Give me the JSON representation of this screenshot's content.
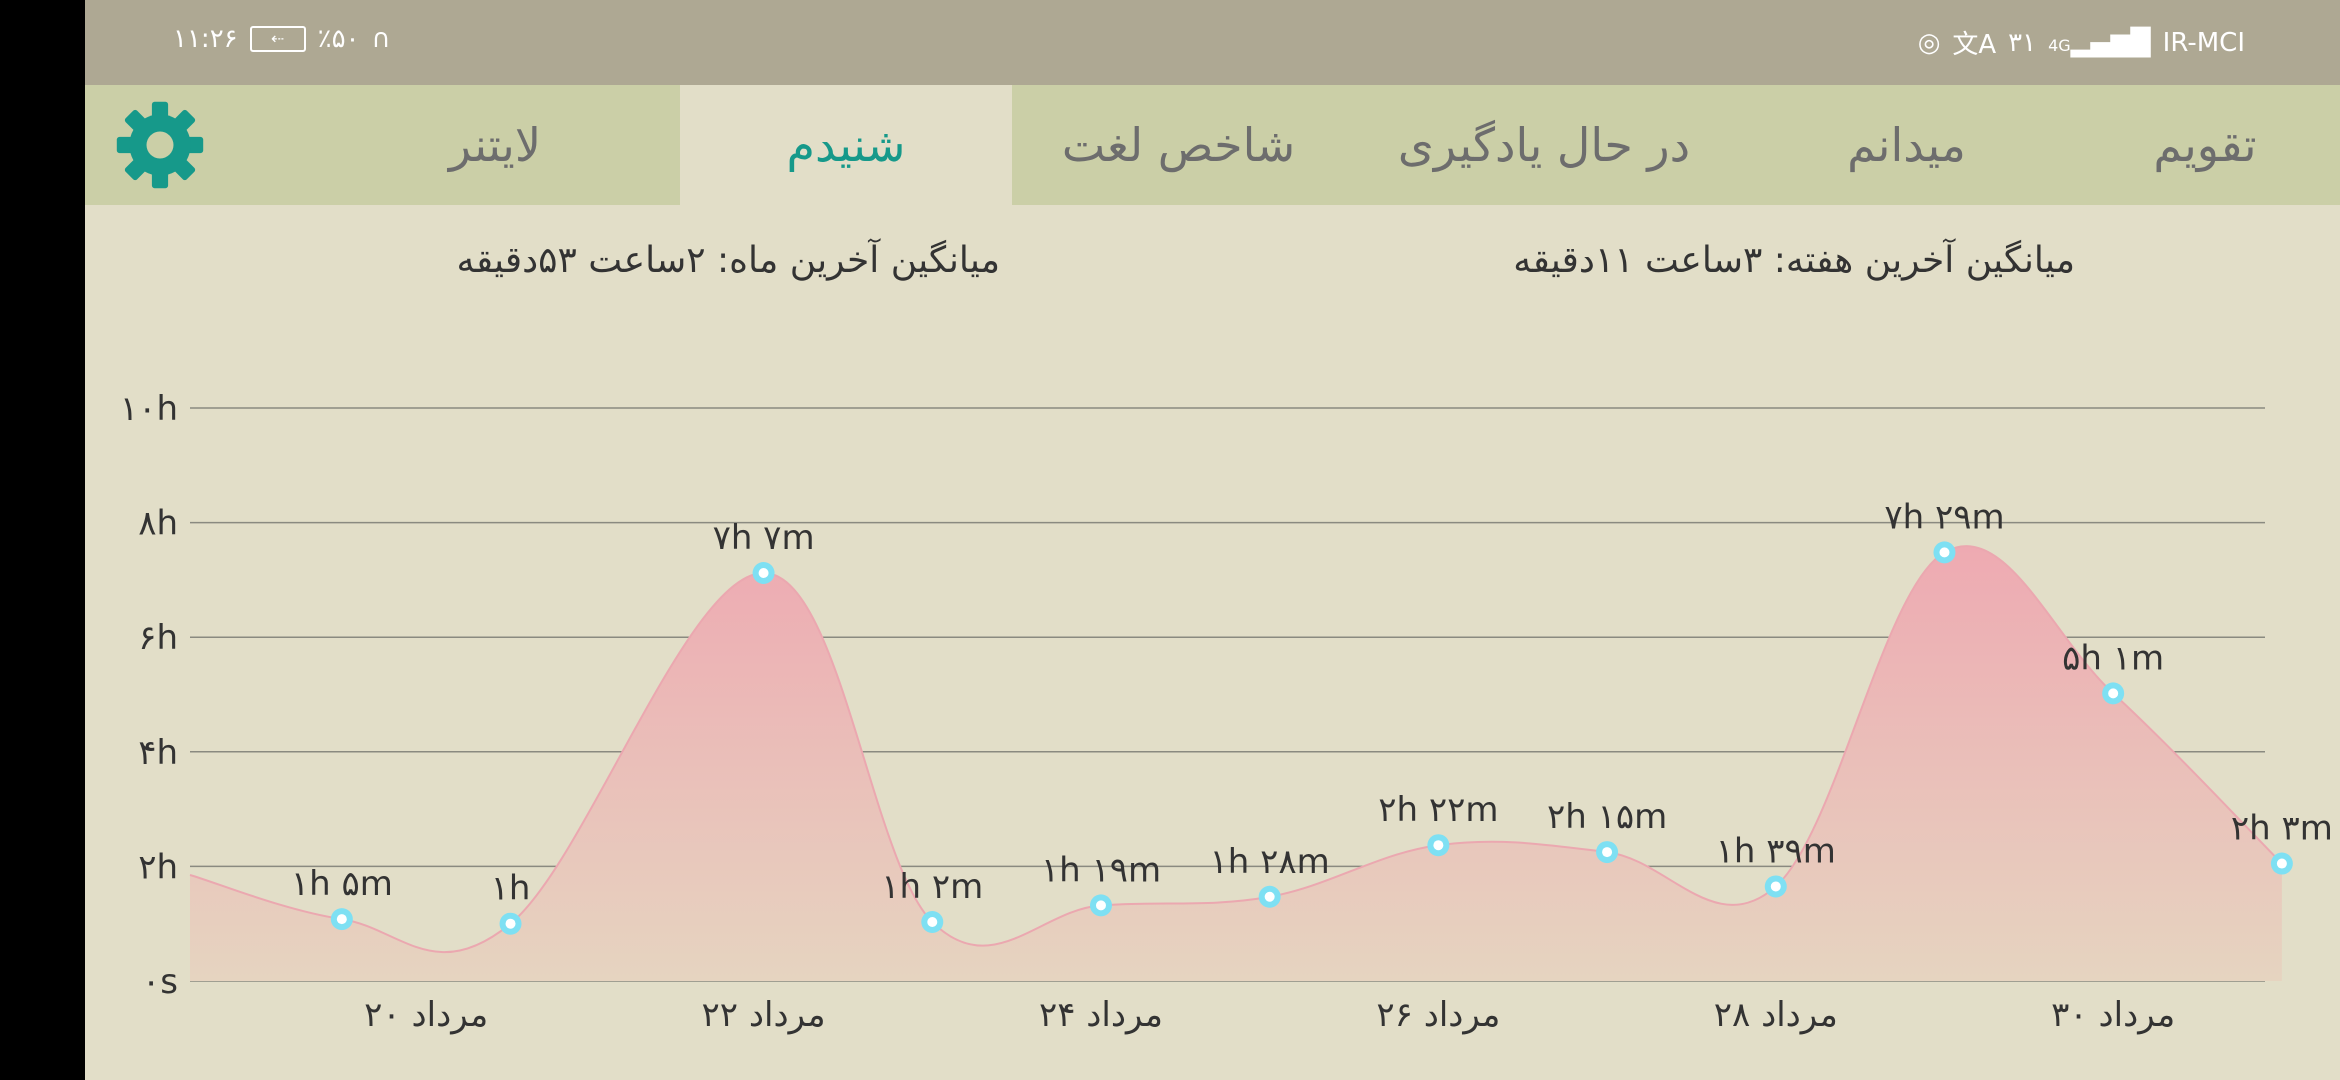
{
  "status_bar": {
    "time": "۱۱:۲۶",
    "battery": "٪۵۰",
    "carrier": "IR-MCI",
    "signal": "4G",
    "day": "۳۱",
    "icons": [
      "headphones-icon",
      "battery-icon",
      "instagram-icon",
      "translate-icon",
      "signal-icon"
    ]
  },
  "tabs": [
    {
      "label": "تقویم",
      "active": false
    },
    {
      "label": "میدانم",
      "active": false
    },
    {
      "label": "در حال یادگیری",
      "active": false
    },
    {
      "label": "شاخص لغت",
      "active": false
    },
    {
      "label": "شنیدم",
      "active": true
    },
    {
      "label": "لایتنر",
      "active": false
    }
  ],
  "settings_icon": "gear-icon",
  "summary": {
    "week": "میانگین آخرین هفته: ۳ساعت  ۱۱دقیقه",
    "month": "میانگین آخرین ماه: ۲ساعت  ۵۳دقیقه"
  },
  "colors": {
    "accent": "#16998a",
    "area_top": "#eeaab2",
    "area_bottom": "#e6d4c0",
    "line": "#eba8b0",
    "point": "#7ee0f3"
  },
  "chart_data": {
    "type": "area",
    "y_ticks": [
      "۰s",
      "۲h",
      "۴h",
      "۶h",
      "۸h",
      "۱۰h"
    ],
    "ylim": [
      0,
      10
    ],
    "x_ticks": [
      {
        "x": 20,
        "label": "۲۰ مرداد"
      },
      {
        "x": 22,
        "label": "۲۲ مرداد"
      },
      {
        "x": 24,
        "label": "۲۴ مرداد"
      },
      {
        "x": 26,
        "label": "۲۶ مرداد"
      },
      {
        "x": 28,
        "label": "۲۸ مرداد"
      },
      {
        "x": 30,
        "label": "۳۰ مرداد"
      }
    ],
    "xlim": [
      18.6,
      30.9
    ],
    "grid": true,
    "points": [
      {
        "x": 19.5,
        "y": 1.08,
        "label": "۱h ۵m"
      },
      {
        "x": 20.5,
        "y": 1.0,
        "label": "۱h"
      },
      {
        "x": 22.0,
        "y": 7.12,
        "label": "۷h ۷m"
      },
      {
        "x": 23.0,
        "y": 1.03,
        "label": "۱h ۲m"
      },
      {
        "x": 24.0,
        "y": 1.32,
        "label": "۱h ۱۹m"
      },
      {
        "x": 25.0,
        "y": 1.47,
        "label": "۱h ۲۸m"
      },
      {
        "x": 26.0,
        "y": 2.37,
        "label": "۲h ۲۲m"
      },
      {
        "x": 27.0,
        "y": 2.25,
        "label": "۲h ۱۵m"
      },
      {
        "x": 28.0,
        "y": 1.65,
        "label": "۱h ۳۹m"
      },
      {
        "x": 29.0,
        "y": 7.48,
        "label": "۷h ۲۹m"
      },
      {
        "x": 30.0,
        "y": 5.02,
        "label": "۵h ۱m"
      },
      {
        "x": 31.0,
        "y": 2.05,
        "label": "۲h ۳m"
      }
    ]
  }
}
